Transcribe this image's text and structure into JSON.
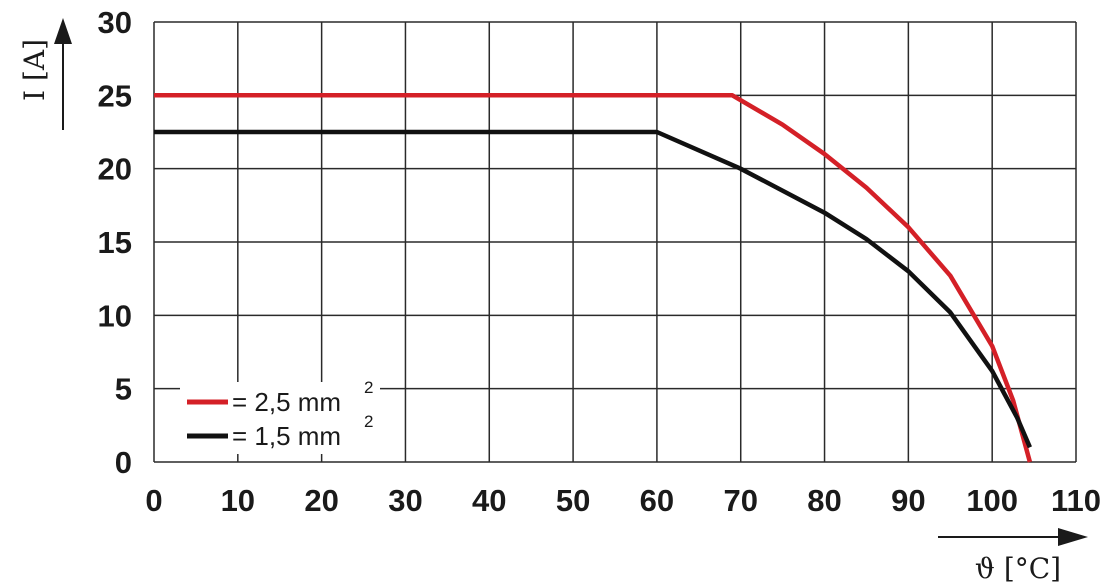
{
  "chart_data": {
    "type": "line",
    "xlabel": "ϑ [°C]",
    "ylabel": "I [A]",
    "xlim": [
      0,
      110
    ],
    "ylim": [
      0,
      30
    ],
    "x_ticks": [
      "0",
      "10",
      "20",
      "30",
      "40",
      "50",
      "60",
      "70",
      "80",
      "90",
      "100",
      "110"
    ],
    "y_ticks": [
      "0",
      "5",
      "10",
      "15",
      "20",
      "25",
      "30"
    ],
    "grid": true,
    "legend_position": "bottom-left",
    "series": [
      {
        "name": "= 2,5 mm",
        "name_superscript": "2",
        "color": "#d42027",
        "x": [
          0,
          69,
          75,
          80,
          85,
          90,
          95,
          100,
          102.5,
          104.5
        ],
        "y": [
          25,
          25,
          23,
          21,
          18.7,
          16,
          12.7,
          7.9,
          4.2,
          0
        ]
      },
      {
        "name": "= 1,5 mm",
        "name_superscript": "2",
        "color": "#111111",
        "x": [
          0,
          60,
          70,
          80,
          85,
          90,
          95,
          100,
          103,
          104.5
        ],
        "y": [
          22.5,
          22.5,
          20,
          17,
          15.2,
          13,
          10.2,
          6.2,
          3,
          1
        ]
      }
    ]
  }
}
